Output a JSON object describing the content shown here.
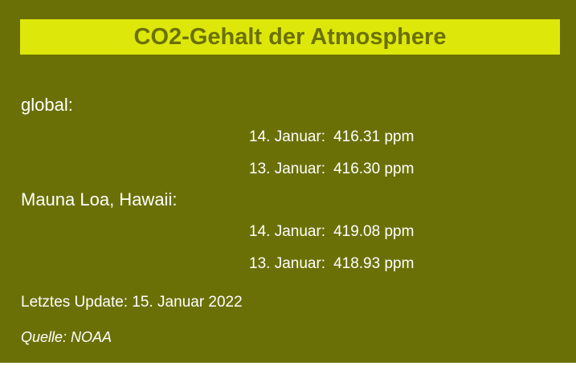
{
  "widget": {
    "title": "CO2-Gehalt der Atmosphere",
    "sections": [
      {
        "label": "global:",
        "rows": [
          {
            "date": "14. Januar:",
            "value": "416.31 ppm"
          },
          {
            "date": "13. Januar:",
            "value": "416.30 ppm"
          }
        ]
      },
      {
        "label": "Mauna Loa, Hawaii:",
        "rows": [
          {
            "date": "14. Januar:",
            "value": "419.08 ppm"
          },
          {
            "date": "13. Januar:",
            "value": "418.93 ppm"
          }
        ]
      }
    ],
    "update": "Letztes Update: 15. Januar 2022",
    "source": "Quelle: NOAA"
  }
}
